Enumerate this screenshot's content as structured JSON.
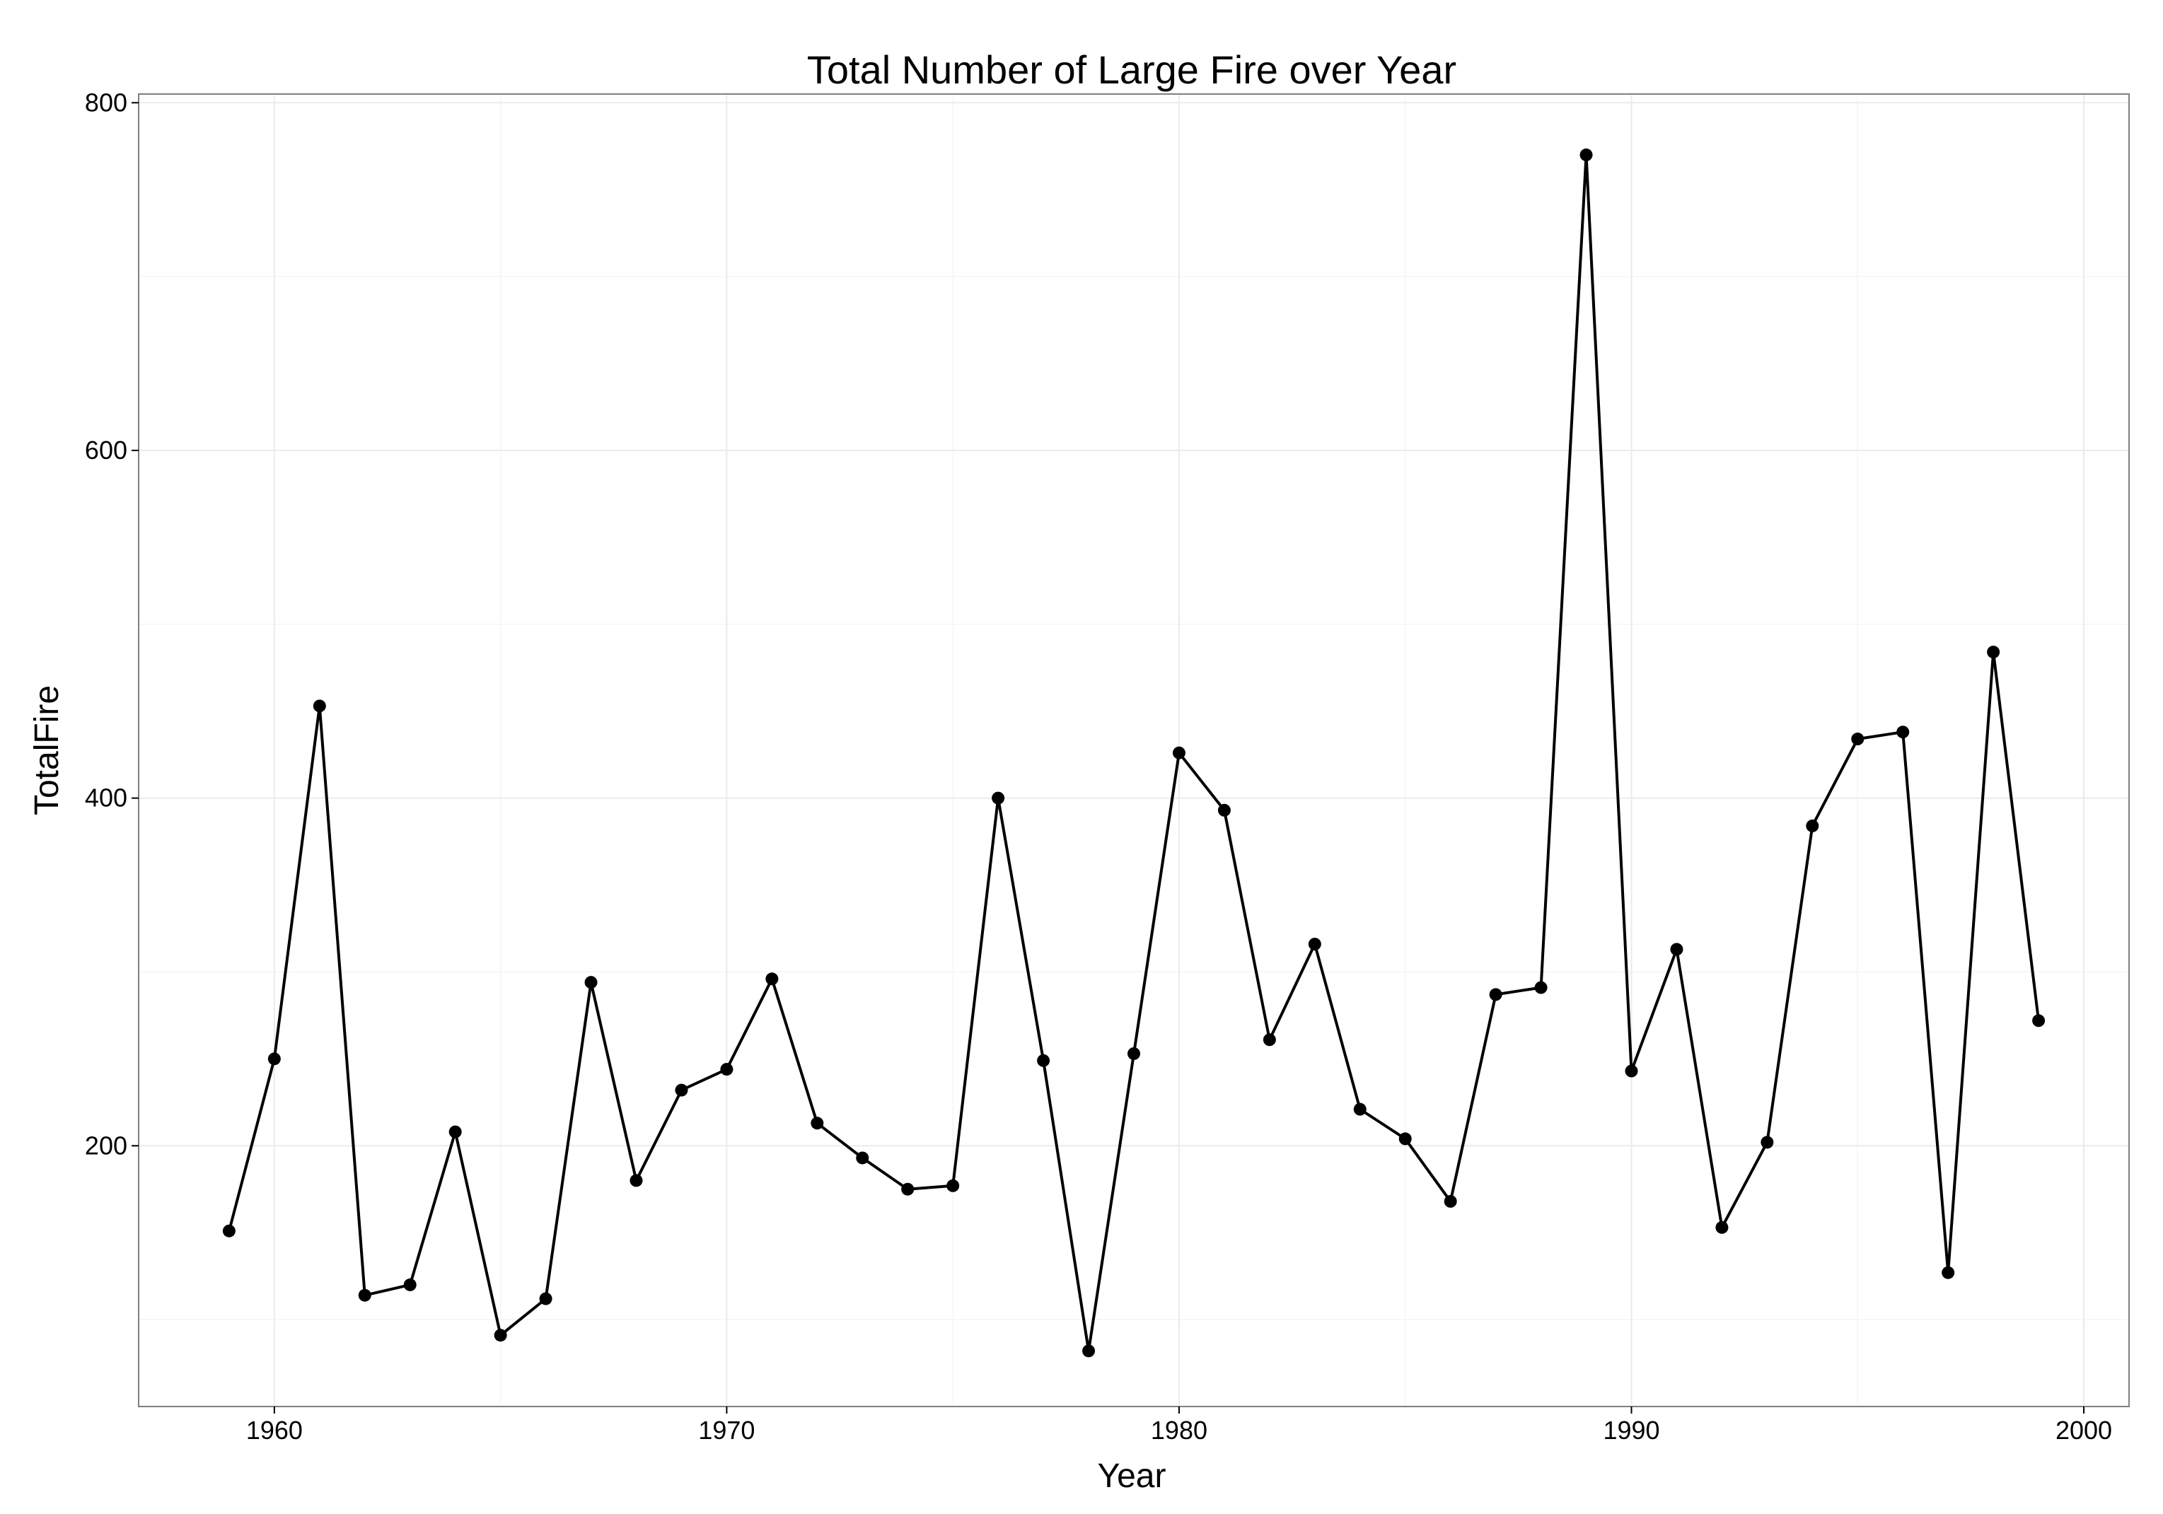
{
  "chart_data": {
    "type": "line",
    "title": "Total Number of Large Fire over Year",
    "xlabel": "Year",
    "ylabel": "TotalFire",
    "xlim": [
      1957,
      2001
    ],
    "ylim": [
      50,
      805
    ],
    "xticks": [
      1960,
      1970,
      1980,
      1990,
      2000
    ],
    "yticks": [
      200,
      400,
      600,
      800
    ],
    "grid": true,
    "legend": "none",
    "colors": {
      "line": "#000000",
      "points": "#000000",
      "grid": "#ebebeb",
      "border": "#7f7f7f"
    },
    "x": [
      1959,
      1960,
      1961,
      1962,
      1963,
      1964,
      1965,
      1966,
      1967,
      1968,
      1969,
      1970,
      1971,
      1972,
      1973,
      1974,
      1975,
      1976,
      1977,
      1978,
      1979,
      1980,
      1981,
      1982,
      1983,
      1984,
      1985,
      1986,
      1987,
      1988,
      1989,
      1990,
      1991,
      1992,
      1993,
      1994,
      1995,
      1996,
      1997,
      1998,
      1999
    ],
    "y": [
      151,
      250,
      453,
      114,
      120,
      208,
      91,
      112,
      294,
      180,
      232,
      244,
      296,
      213,
      193,
      175,
      177,
      400,
      249,
      82,
      253,
      426,
      393,
      261,
      316,
      221,
      204,
      168,
      287,
      291,
      770,
      243,
      313,
      153,
      202,
      384,
      434,
      438,
      127,
      484,
      272
    ]
  }
}
